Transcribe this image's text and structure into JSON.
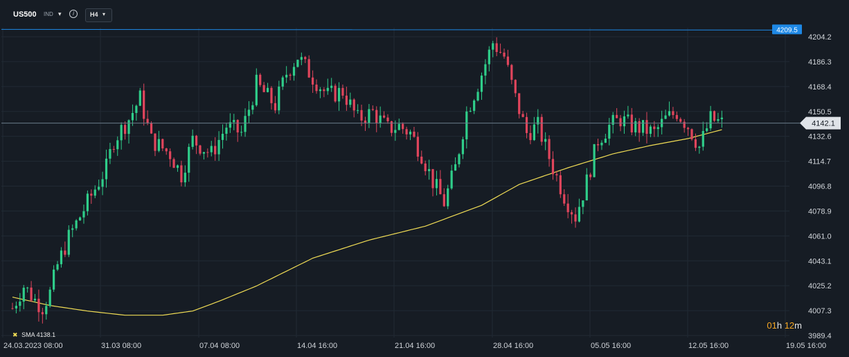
{
  "header": {
    "symbol": "US500",
    "instrument_type": "IND",
    "timeframe": "H4"
  },
  "timer": {
    "hours": "01",
    "h_label": "h",
    "minutes": "12",
    "m_label": "m"
  },
  "legend": {
    "sma_label": "SMA",
    "sma_value": "4138.1"
  },
  "colors": {
    "background": "#161c24",
    "bull": "#2fce8a",
    "bear": "#e0455c",
    "sma": "#f0dc55",
    "alert_line": "#1e88e5",
    "price_line": "#6b7b8a",
    "grid": "#212a34"
  },
  "chart_data": {
    "type": "candlestick",
    "price_axis_ticks": [
      "4204.2",
      "4186.3",
      "4168.4",
      "4150.5",
      "4132.6",
      "4114.7",
      "4096.8",
      "4078.9",
      "4061.0",
      "4043.1",
      "4025.2",
      "4007.3",
      "3989.4"
    ],
    "time_axis_ticks": [
      "24.03.2023  08:00",
      "31.03  08:00",
      "07.04  08:00",
      "14.04  16:00",
      "21.04  16:00",
      "28.04  16:00",
      "05.05  16:00",
      "12.05  16:00",
      "19.05  16:00"
    ],
    "ylim": [
      3985.5,
      4217.0
    ],
    "alert_level": {
      "value": 4209.5,
      "label": "4209.5"
    },
    "current_price": {
      "value": 4142.1,
      "label": "4142.1"
    },
    "anchors": [
      {
        "i": 0,
        "price": 4009
      },
      {
        "i": 3,
        "price": 4025
      },
      {
        "i": 6,
        "price": 4015
      },
      {
        "i": 8,
        "price": 4010
      },
      {
        "i": 10,
        "price": 4020
      },
      {
        "i": 12,
        "price": 4040
      },
      {
        "i": 15,
        "price": 4060
      },
      {
        "i": 18,
        "price": 4075
      },
      {
        "i": 22,
        "price": 4095
      },
      {
        "i": 25,
        "price": 4110
      },
      {
        "i": 27,
        "price": 4130
      },
      {
        "i": 31,
        "price": 4145
      },
      {
        "i": 34,
        "price": 4160
      },
      {
        "i": 37,
        "price": 4130
      },
      {
        "i": 42,
        "price": 4120
      },
      {
        "i": 45,
        "price": 4105
      },
      {
        "i": 48,
        "price": 4130
      },
      {
        "i": 53,
        "price": 4120
      },
      {
        "i": 57,
        "price": 4140
      },
      {
        "i": 61,
        "price": 4135
      },
      {
        "i": 65,
        "price": 4170
      },
      {
        "i": 70,
        "price": 4155
      },
      {
        "i": 73,
        "price": 4178
      },
      {
        "i": 76,
        "price": 4190
      },
      {
        "i": 80,
        "price": 4175
      },
      {
        "i": 84,
        "price": 4162
      },
      {
        "i": 88,
        "price": 4165
      },
      {
        "i": 92,
        "price": 4145
      },
      {
        "i": 96,
        "price": 4150
      },
      {
        "i": 100,
        "price": 4138
      },
      {
        "i": 103,
        "price": 4140
      },
      {
        "i": 106,
        "price": 4135
      },
      {
        "i": 109,
        "price": 4120
      },
      {
        "i": 112,
        "price": 4100
      },
      {
        "i": 115,
        "price": 4085
      },
      {
        "i": 118,
        "price": 4110
      },
      {
        "i": 121,
        "price": 4150
      },
      {
        "i": 124,
        "price": 4170
      },
      {
        "i": 126,
        "price": 4185
      },
      {
        "i": 128,
        "price": 4200
      },
      {
        "i": 131,
        "price": 4190
      },
      {
        "i": 134,
        "price": 4160
      },
      {
        "i": 137,
        "price": 4135
      },
      {
        "i": 140,
        "price": 4140
      },
      {
        "i": 144,
        "price": 4110
      },
      {
        "i": 147,
        "price": 4090
      },
      {
        "i": 150,
        "price": 4075
      },
      {
        "i": 153,
        "price": 4100
      },
      {
        "i": 156,
        "price": 4130
      },
      {
        "i": 159,
        "price": 4140
      },
      {
        "i": 162,
        "price": 4145
      },
      {
        "i": 165,
        "price": 4140
      },
      {
        "i": 168,
        "price": 4138
      },
      {
        "i": 171,
        "price": 4135
      },
      {
        "i": 174,
        "price": 4145
      },
      {
        "i": 177,
        "price": 4150
      },
      {
        "i": 180,
        "price": 4140
      },
      {
        "i": 183,
        "price": 4125
      },
      {
        "i": 186,
        "price": 4145
      },
      {
        "i": 189,
        "price": 4142
      }
    ],
    "sma": [
      {
        "i": 0,
        "price": 4017
      },
      {
        "i": 10,
        "price": 4011
      },
      {
        "i": 20,
        "price": 4007
      },
      {
        "i": 30,
        "price": 4004
      },
      {
        "i": 40,
        "price": 4004
      },
      {
        "i": 48,
        "price": 4007
      },
      {
        "i": 55,
        "price": 4014
      },
      {
        "i": 65,
        "price": 4025
      },
      {
        "i": 80,
        "price": 4045
      },
      {
        "i": 95,
        "price": 4058
      },
      {
        "i": 110,
        "price": 4068
      },
      {
        "i": 125,
        "price": 4083
      },
      {
        "i": 135,
        "price": 4098
      },
      {
        "i": 148,
        "price": 4110
      },
      {
        "i": 160,
        "price": 4120
      },
      {
        "i": 170,
        "price": 4126
      },
      {
        "i": 180,
        "price": 4131
      },
      {
        "i": 190,
        "price": 4138.1
      }
    ]
  }
}
